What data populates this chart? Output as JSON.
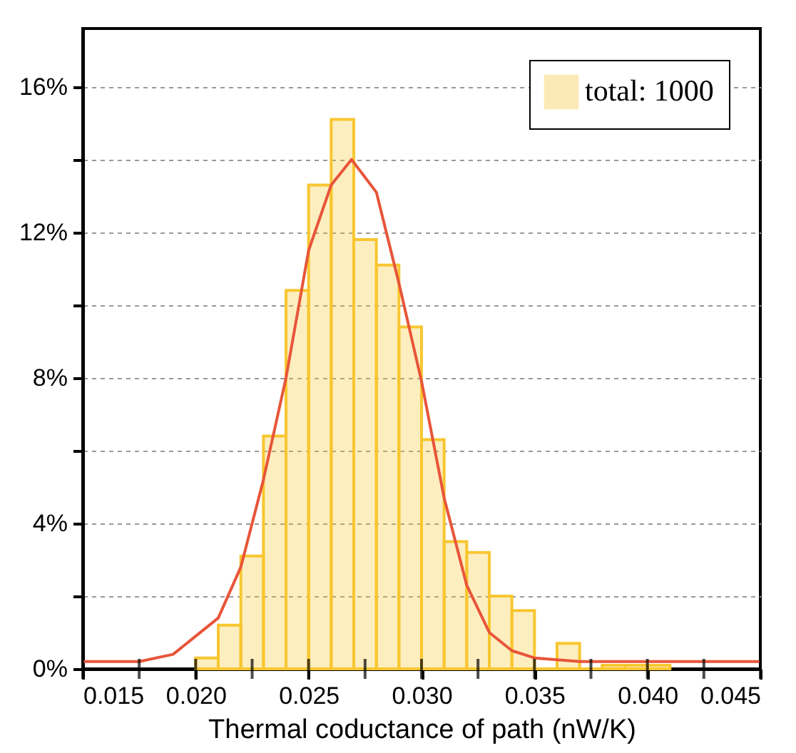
{
  "chart_data": {
    "type": "histogram",
    "xlabel": "Thermal coductance of path (nW/K)",
    "bins": [
      0.02,
      0.021,
      0.022,
      0.023,
      0.024,
      0.025,
      0.026,
      0.027,
      0.028,
      0.029,
      0.03,
      0.031,
      0.032,
      0.033,
      0.034,
      0.035,
      0.036,
      0.037,
      0.038,
      0.039,
      0.04,
      0.041
    ],
    "series": [
      {
        "name": "total: 1000",
        "color": "#f8c630",
        "values": [
          0.3,
          1.2,
          3.1,
          6.4,
          10.4,
          13.3,
          15.1,
          11.8,
          11.1,
          9.4,
          6.3,
          3.5,
          3.2,
          2.0,
          1.6,
          0,
          0.7,
          0,
          0.1,
          0.1,
          0.1
        ]
      },
      {
        "type": "line",
        "color": "#e8553a",
        "x": [
          0.015,
          0.0175,
          0.019,
          0.02,
          0.021,
          0.022,
          0.023,
          0.024,
          0.025,
          0.026,
          0.0269,
          0.028,
          0.029,
          0.03,
          0.031,
          0.032,
          0.033,
          0.034,
          0.035,
          0.037,
          0.045
        ],
        "values": [
          0.2,
          0.2,
          0.4,
          0.9,
          1.4,
          2.8,
          5.2,
          8.0,
          11.5,
          13.3,
          14.0,
          13.1,
          10.6,
          7.9,
          4.7,
          2.3,
          1.0,
          0.5,
          0.3,
          0.2,
          0.2
        ]
      }
    ],
    "xlim": [
      0.015,
      0.045
    ],
    "xticks": [
      {
        "value": 0.015,
        "label": "0.015"
      },
      {
        "value": 0.0175,
        "label": null
      },
      {
        "value": 0.02,
        "label": "0.020"
      },
      {
        "value": 0.0225,
        "label": null
      },
      {
        "value": 0.025,
        "label": "0.025"
      },
      {
        "value": 0.0275,
        "label": null
      },
      {
        "value": 0.03,
        "label": "0.030"
      },
      {
        "value": 0.0325,
        "label": null
      },
      {
        "value": 0.035,
        "label": "0.035"
      },
      {
        "value": 0.0375,
        "label": null
      },
      {
        "value": 0.04,
        "label": "0.040"
      },
      {
        "value": 0.0425,
        "label": null
      },
      {
        "value": 0.045,
        "label": "0.045"
      }
    ],
    "ylim": [
      0,
      17.6
    ],
    "yticks": [
      {
        "value": 0,
        "label": "0%"
      },
      {
        "value": 2,
        "label": null
      },
      {
        "value": 4,
        "label": "4%"
      },
      {
        "value": 6,
        "label": null
      },
      {
        "value": 8,
        "label": "8%"
      },
      {
        "value": 10,
        "label": null
      },
      {
        "value": 12,
        "label": "12%"
      },
      {
        "value": 14,
        "label": null
      },
      {
        "value": 16,
        "label": "16%"
      }
    ],
    "grid": "y",
    "legend": "top right",
    "line_style": "solid",
    "marker": "none"
  }
}
